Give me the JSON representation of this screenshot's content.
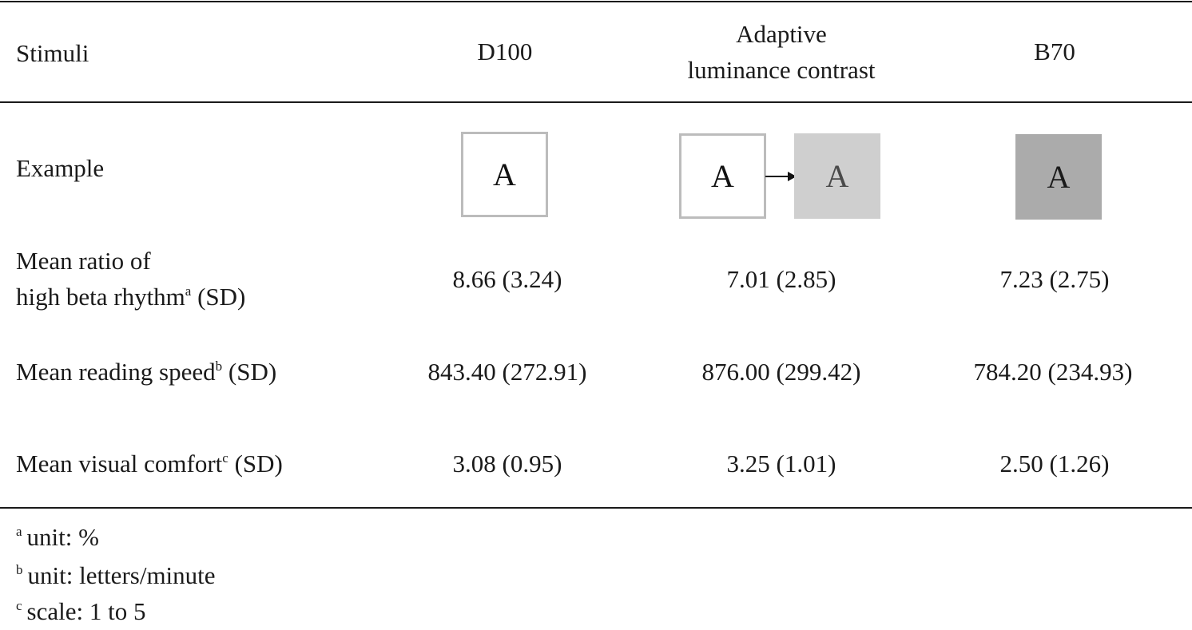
{
  "table": {
    "header": {
      "stimuli": "Stimuli",
      "d100": "D100",
      "adaptive_line1": "Adaptive",
      "adaptive_line2": "luminance contrast",
      "b70": "B70"
    },
    "example_row": {
      "label": "Example",
      "glyph": "A"
    },
    "rows": [
      {
        "label_line1": "Mean ratio of",
        "label_line2": "high beta rhythm",
        "label_sup": "a",
        "label_suffix": " (SD)",
        "d100": "8.66 (3.24)",
        "adaptive": "7.01 (2.85)",
        "b70": "7.23 (2.75)"
      },
      {
        "label": "Mean reading speed",
        "label_sup": "b",
        "label_suffix": " (SD)",
        "d100": "843.40 (272.91)",
        "adaptive": "876.00 (299.42)",
        "b70": "784.20 (234.93)"
      },
      {
        "label": "Mean visual comfort",
        "label_sup": "c",
        "label_suffix": " (SD)",
        "d100": "3.08 (0.95)",
        "adaptive": "3.25 (1.01)",
        "b70": "2.50 (1.26)"
      }
    ],
    "footnotes": [
      {
        "mark": "a",
        "text": "unit: %"
      },
      {
        "mark": "b",
        "text": "unit: letters/minute"
      },
      {
        "mark": "c",
        "text": "scale: 1 to 5"
      }
    ]
  }
}
